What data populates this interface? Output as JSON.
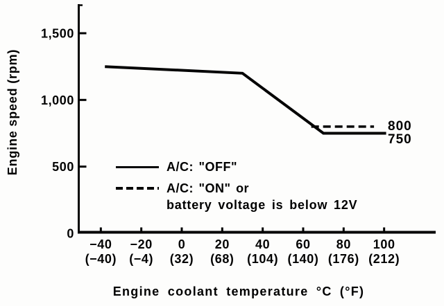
{
  "chart_data": {
    "type": "line",
    "title": "",
    "xlabel": "Engine coolant temperature °C (°F)",
    "ylabel": "Engine speed (rpm)",
    "xlim": [
      -51,
      126
    ],
    "ylim": [
      0,
      1720
    ],
    "grid": false,
    "legend_position": "lower-left-inside",
    "x_ticks": [
      {
        "v": -40,
        "c": "−40",
        "f": "(−40)"
      },
      {
        "v": -20,
        "c": "−20",
        "f": "(−4)"
      },
      {
        "v": 0,
        "c": "0",
        "f": "(32)"
      },
      {
        "v": 20,
        "c": "20",
        "f": "(68)"
      },
      {
        "v": 40,
        "c": "40",
        "f": "(104)"
      },
      {
        "v": 60,
        "c": "60",
        "f": "(140)"
      },
      {
        "v": 80,
        "c": "80",
        "f": "(176)"
      },
      {
        "v": 100,
        "c": "100",
        "f": "(212)"
      }
    ],
    "y_ticks": [
      {
        "v": 0,
        "label": "0"
      },
      {
        "v": 500,
        "label": "500"
      },
      {
        "v": 1000,
        "label": "1,000"
      },
      {
        "v": 1500,
        "label": "1,500"
      }
    ],
    "series": [
      {
        "name": "A/C: \"OFF\"",
        "style": "solid",
        "points": [
          [
            -38,
            1250
          ],
          [
            30,
            1200
          ],
          [
            70,
            750
          ],
          [
            101,
            750
          ]
        ]
      },
      {
        "name": "A/C: \"ON\" or battery voltage is below 12V",
        "style": "dashed",
        "points": [
          [
            64,
            800
          ],
          [
            95,
            800
          ]
        ]
      }
    ],
    "value_labels": [
      {
        "text": "800",
        "series": "dashed",
        "value": 800
      },
      {
        "text": "750",
        "series": "solid",
        "value": 750
      }
    ],
    "legend": [
      {
        "style": "solid",
        "label": "A/C: \"OFF\""
      },
      {
        "style": "dashed",
        "label": "A/C: \"ON\" or",
        "label2": "battery voltage is below 12V"
      }
    ],
    "colors": {
      "ink": "#030303",
      "background": "#fdfdfc"
    }
  }
}
